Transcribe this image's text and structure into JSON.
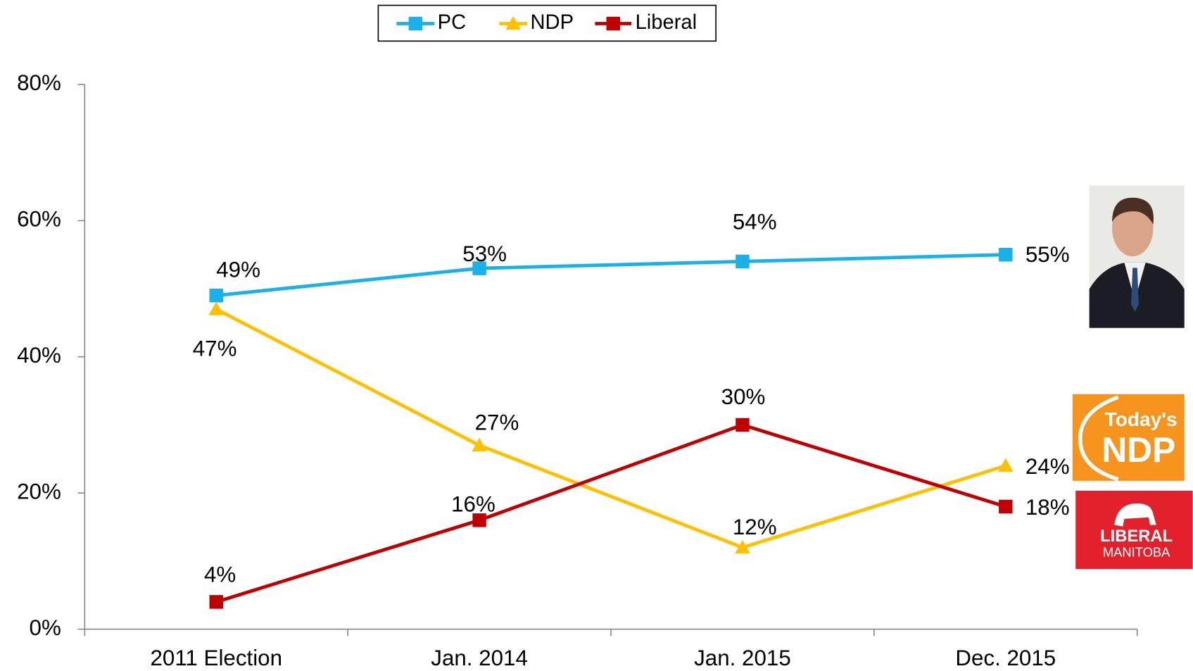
{
  "chart_data": {
    "type": "line",
    "categories": [
      "2011 Election",
      "Jan. 2014",
      "Jan. 2015",
      "Dec. 2015"
    ],
    "series": [
      {
        "name": "PC",
        "color": "#1ab0e8",
        "marker": "square",
        "values": [
          49,
          53,
          54,
          55
        ],
        "value_labels": [
          "49%",
          "53%",
          "54%",
          "55%"
        ]
      },
      {
        "name": "NDP",
        "color": "#ffc000",
        "marker": "triangle",
        "values": [
          47,
          27,
          12,
          24
        ],
        "value_labels": [
          "47%",
          "27%",
          "12%",
          "24%"
        ]
      },
      {
        "name": "Liberal",
        "color": "#c00000",
        "marker": "square",
        "values": [
          4,
          16,
          30,
          18
        ],
        "value_labels": [
          "4%",
          "16%",
          "30%",
          "18%"
        ]
      }
    ],
    "ylim": [
      0,
      80
    ],
    "yticks": [
      {
        "value": 0,
        "label": "0%"
      },
      {
        "value": 20,
        "label": "20%"
      },
      {
        "value": 40,
        "label": "40%"
      },
      {
        "value": 60,
        "label": "60%"
      },
      {
        "value": 80,
        "label": "80%"
      }
    ],
    "grid": false,
    "legend": "top"
  },
  "logos": {
    "ndp": [
      "Today's",
      "NDP"
    ],
    "liberal": [
      "LIBERAL",
      "MANITOBA"
    ]
  }
}
